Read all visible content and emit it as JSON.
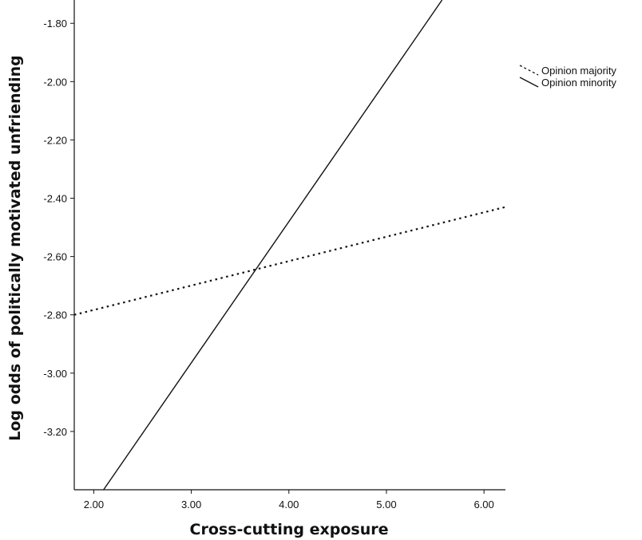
{
  "chart_data": {
    "type": "line",
    "title": "",
    "xlabel": "Cross-cutting exposure",
    "ylabel": "Log odds of politically motivated unfriending",
    "xlim": [
      1.8,
      6.22
    ],
    "ylim": [
      -3.4,
      -1.72
    ],
    "x_ticks": [
      2.0,
      3.0,
      4.0,
      5.0,
      6.0
    ],
    "x_tick_labels": [
      "2.00",
      "3.00",
      "4.00",
      "5.00",
      "6.00"
    ],
    "y_ticks": [
      -1.8,
      -2.0,
      -2.2,
      -2.4,
      -2.6,
      -2.8,
      -3.0,
      -3.2
    ],
    "y_tick_labels": [
      "-1.80",
      "-2.00",
      "-2.20",
      "-2.40",
      "-2.60",
      "-2.80",
      "-3.00",
      "-3.20"
    ],
    "grid": false,
    "legend_position": "right",
    "series": [
      {
        "name": "Opinion majority",
        "style": "dotted",
        "color": "#111111",
        "x": [
          1.8,
          6.22
        ],
        "y": [
          -2.8,
          -2.43
        ]
      },
      {
        "name": "Opinion minority",
        "style": "solid",
        "color": "#111111",
        "x": [
          2.1,
          5.57
        ],
        "y": [
          -3.4,
          -1.72
        ]
      }
    ]
  }
}
